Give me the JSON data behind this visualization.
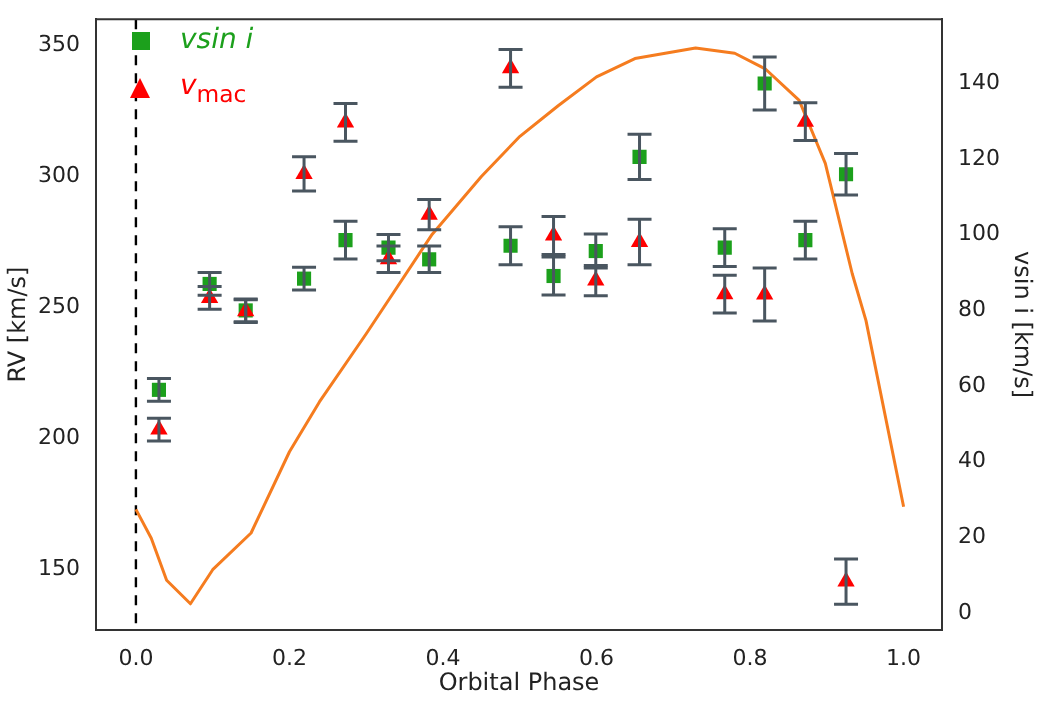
{
  "chart_data": {
    "type": "scatter",
    "xlabel": "Orbital Phase",
    "ylabel": "RV [km/s]",
    "y2label": "vsin i [km/s]",
    "xlim": [
      -0.052,
      1.05
    ],
    "xticks": [
      {
        "value": 0,
        "label": "0.0"
      },
      {
        "value": 0.2,
        "label": "0.2"
      },
      {
        "value": 0.4,
        "label": "0.4"
      },
      {
        "value": 0.6,
        "label": "0.6"
      },
      {
        "value": 0.8,
        "label": "0.8"
      },
      {
        "value": 1,
        "label": "1.0"
      }
    ],
    "ylim": [
      127,
      360
    ],
    "yticks": [
      150,
      200,
      250,
      300,
      350
    ],
    "y2lim": [
      -4.5,
      157
    ],
    "y2ticks": [
      0,
      20,
      40,
      60,
      80,
      100,
      120,
      140
    ],
    "legend": "top left",
    "grid": false,
    "ref_lines": [
      {
        "axis": "x",
        "value": 0,
        "color": "#000000",
        "line_style": "dashed"
      }
    ],
    "series": [
      {
        "name": "vsin i",
        "axis": "y2",
        "marker": "square",
        "color": "#1ca01c",
        "x": [
          0.03,
          0.096,
          0.143,
          0.219,
          0.273,
          0.329,
          0.382,
          0.488,
          0.544,
          0.599,
          0.656,
          0.767,
          0.819,
          0.872,
          0.925
        ],
        "values": [
          59,
          87,
          80,
          88.4,
          98.6,
          96.6,
          93.5,
          97.1,
          89.1,
          95.7,
          120.6,
          96.6,
          140,
          98.6,
          116
        ],
        "errors": [
          3,
          3,
          3,
          3,
          5,
          3.5,
          3.5,
          5,
          5,
          4.5,
          6,
          5,
          7,
          5,
          5.5
        ]
      },
      {
        "name": "v$_{mac}$",
        "axis": "y2",
        "marker": "triangle",
        "color": "#ff0000",
        "x": [
          0.03,
          0.096,
          0.143,
          0.219,
          0.273,
          0.329,
          0.382,
          0.488,
          0.544,
          0.599,
          0.656,
          0.767,
          0.819,
          0.872,
          0.925
        ],
        "values": [
          48.5,
          83.3,
          79.8,
          116.1,
          129.7,
          93.5,
          105.3,
          144,
          99.8,
          87.9,
          98.1,
          84.3,
          84.2,
          129.9,
          8.3
        ],
        "errors": [
          3,
          3,
          3,
          4.5,
          5,
          3.5,
          4,
          5,
          5,
          4,
          6,
          5,
          7,
          5,
          6
        ]
      },
      {
        "type": "line",
        "axis": "y",
        "marker": "none",
        "color": "#f57c1f",
        "x": [
          0,
          0.02,
          0.04,
          0.071,
          0.1,
          0.15,
          0.2,
          0.239,
          0.3,
          0.386,
          0.45,
          0.499,
          0.55,
          0.6,
          0.65,
          0.729,
          0.78,
          0.82,
          0.864,
          0.898,
          0.933,
          0.951,
          1.0
        ],
        "values": [
          173,
          162,
          146,
          137,
          150,
          164,
          195,
          214,
          240,
          278,
          300,
          315,
          327,
          338,
          345,
          349,
          347,
          341,
          329,
          305,
          263,
          245,
          174
        ]
      }
    ]
  }
}
